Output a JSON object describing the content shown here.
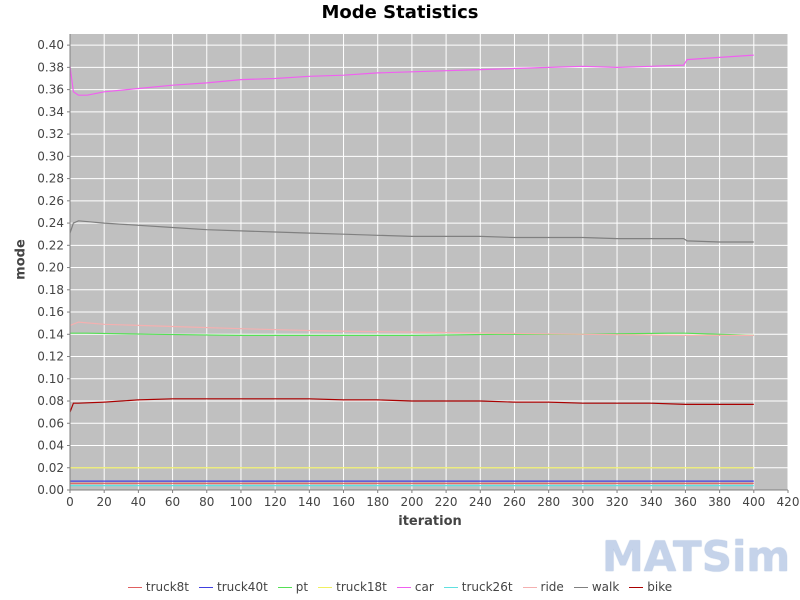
{
  "title": "Mode Statistics",
  "logo_text": "MATSim",
  "chart_data": {
    "type": "line",
    "title": "Mode Statistics",
    "xlabel": "iteration",
    "ylabel": "mode",
    "xlim": [
      0,
      420
    ],
    "ylim": [
      0.0,
      0.41
    ],
    "x_ticks": [
      "0",
      "20",
      "40",
      "60",
      "80",
      "100",
      "120",
      "140",
      "160",
      "180",
      "200",
      "220",
      "240",
      "260",
      "280",
      "300",
      "320",
      "340",
      "360",
      "380",
      "400",
      "420"
    ],
    "y_ticks": [
      "0.00",
      "0.02",
      "0.04",
      "0.06",
      "0.08",
      "0.10",
      "0.12",
      "0.14",
      "0.16",
      "0.18",
      "0.20",
      "0.22",
      "0.24",
      "0.26",
      "0.28",
      "0.30",
      "0.32",
      "0.34",
      "0.36",
      "0.38",
      "0.40"
    ],
    "grid": true,
    "legend_position": "bottom",
    "plot_background": "#c0c0c0",
    "series": [
      {
        "name": "truck8t",
        "color": "#e06060",
        "x": [
          0,
          400
        ],
        "y": [
          0.006,
          0.006
        ]
      },
      {
        "name": "truck40t",
        "color": "#4040e0",
        "x": [
          0,
          400
        ],
        "y": [
          0.008,
          0.008
        ]
      },
      {
        "name": "pt",
        "color": "#55e055",
        "x": [
          0,
          10,
          50,
          100,
          150,
          200,
          250,
          300,
          350,
          360,
          400
        ],
        "y": [
          0.141,
          0.141,
          0.14,
          0.139,
          0.139,
          0.139,
          0.14,
          0.14,
          0.141,
          0.141,
          0.139
        ]
      },
      {
        "name": "truck18t",
        "color": "#f0f060",
        "x": [
          0,
          400
        ],
        "y": [
          0.02,
          0.02
        ]
      },
      {
        "name": "car",
        "color": "#f060f0",
        "x": [
          0,
          2,
          5,
          10,
          20,
          40,
          60,
          80,
          100,
          120,
          140,
          160,
          180,
          200,
          220,
          240,
          260,
          280,
          300,
          320,
          340,
          359,
          361,
          380,
          400
        ],
        "y": [
          0.381,
          0.358,
          0.355,
          0.355,
          0.358,
          0.361,
          0.364,
          0.366,
          0.369,
          0.37,
          0.372,
          0.373,
          0.375,
          0.376,
          0.377,
          0.378,
          0.379,
          0.38,
          0.381,
          0.38,
          0.381,
          0.382,
          0.387,
          0.389,
          0.391
        ]
      },
      {
        "name": "truck26t",
        "color": "#60e0e0",
        "x": [
          0,
          400
        ],
        "y": [
          0.004,
          0.004
        ]
      },
      {
        "name": "ride",
        "color": "#f4b0b0",
        "x": [
          0,
          5,
          20,
          60,
          100,
          150,
          200,
          250,
          300,
          360,
          400
        ],
        "y": [
          0.148,
          0.151,
          0.149,
          0.147,
          0.145,
          0.143,
          0.142,
          0.141,
          0.14,
          0.139,
          0.139
        ]
      },
      {
        "name": "walk",
        "color": "#808080",
        "x": [
          0,
          2,
          5,
          20,
          40,
          60,
          80,
          100,
          120,
          140,
          160,
          180,
          200,
          220,
          240,
          260,
          280,
          300,
          320,
          340,
          359,
          361,
          380,
          400
        ],
        "y": [
          0.231,
          0.24,
          0.242,
          0.24,
          0.238,
          0.236,
          0.234,
          0.233,
          0.232,
          0.231,
          0.23,
          0.229,
          0.228,
          0.228,
          0.228,
          0.227,
          0.227,
          0.227,
          0.226,
          0.226,
          0.226,
          0.224,
          0.223,
          0.223
        ]
      },
      {
        "name": "bike",
        "color": "#aa0000",
        "x": [
          0,
          2,
          5,
          20,
          40,
          60,
          80,
          100,
          120,
          140,
          160,
          180,
          200,
          220,
          240,
          260,
          280,
          300,
          320,
          340,
          360,
          380,
          400
        ],
        "y": [
          0.07,
          0.078,
          0.078,
          0.079,
          0.081,
          0.082,
          0.082,
          0.082,
          0.082,
          0.082,
          0.081,
          0.081,
          0.08,
          0.08,
          0.08,
          0.079,
          0.079,
          0.078,
          0.078,
          0.078,
          0.077,
          0.077,
          0.077
        ]
      }
    ]
  }
}
